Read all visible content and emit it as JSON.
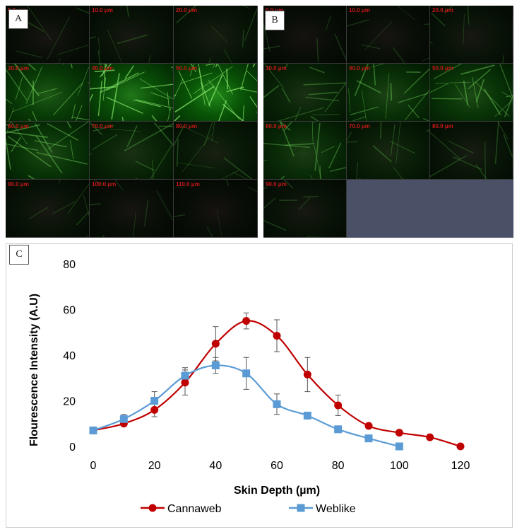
{
  "panel_a": {
    "label": "A",
    "tiles": [
      {
        "depth": "0.0 μm",
        "intensity": 0.1
      },
      {
        "depth": "10.0 μm",
        "intensity": 0.14
      },
      {
        "depth": "20.0 μm",
        "intensity": 0.18
      },
      {
        "depth": "30.0 μm",
        "intensity": 0.65
      },
      {
        "depth": "40.0 μm",
        "intensity": 0.85
      },
      {
        "depth": "50.0 μm",
        "intensity": 0.95
      },
      {
        "depth": "60.0 μm",
        "intensity": 0.55
      },
      {
        "depth": "70.0 μm",
        "intensity": 0.35
      },
      {
        "depth": "80.0 μm",
        "intensity": 0.22
      },
      {
        "depth": "90.0 μm",
        "intensity": 0.14
      },
      {
        "depth": "100.0 μm",
        "intensity": 0.1
      },
      {
        "depth": "110.0 μm",
        "intensity": 0.08
      }
    ]
  },
  "panel_b": {
    "label": "B",
    "tiles": [
      {
        "depth": "0.0 μm",
        "intensity": 0.08
      },
      {
        "depth": "10.0 μm",
        "intensity": 0.1
      },
      {
        "depth": "20.0 μm",
        "intensity": 0.14
      },
      {
        "depth": "30.0 μm",
        "intensity": 0.35
      },
      {
        "depth": "40.0 μm",
        "intensity": 0.5
      },
      {
        "depth": "50.0 μm",
        "intensity": 0.55
      },
      {
        "depth": "60.0 μm",
        "intensity": 0.45
      },
      {
        "depth": "70.0 μm",
        "intensity": 0.28
      },
      {
        "depth": "80.0 μm",
        "intensity": 0.18
      },
      {
        "depth": "90.0 μm",
        "intensity": 0.14
      }
    ]
  },
  "panel_c": {
    "label": "C"
  },
  "chart_data": {
    "type": "line",
    "title": "",
    "xlabel": "Skin Depth (µm)",
    "ylabel": "Flourescence Intensity (A.U)",
    "xlim": [
      0,
      120
    ],
    "ylim": [
      0,
      80
    ],
    "xticks": [
      0,
      20,
      40,
      60,
      80,
      100,
      120
    ],
    "yticks": [
      0,
      20,
      40,
      60,
      80
    ],
    "grid": false,
    "legend_position": "bottom",
    "series": [
      {
        "name": "Cannaweb",
        "color": "#c00000",
        "marker": "circle",
        "x": [
          0,
          10,
          20,
          30,
          40,
          50,
          60,
          70,
          80,
          90,
          100,
          110,
          120
        ],
        "y": [
          7,
          10,
          16,
          28,
          45,
          55,
          48.5,
          31.5,
          18,
          9,
          6,
          4,
          0
        ],
        "err": [
          0,
          0,
          3,
          5.5,
          7.5,
          3.5,
          7,
          7.5,
          4.5,
          0,
          0,
          0,
          0
        ]
      },
      {
        "name": "Weblike",
        "color": "#5b9bd5",
        "marker": "square",
        "x": [
          0,
          10,
          20,
          30,
          40,
          50,
          60,
          70,
          80,
          90,
          100
        ],
        "y": [
          7,
          12,
          20,
          31,
          35.5,
          32,
          18.5,
          13.5,
          7.5,
          3.5,
          0
        ],
        "err": [
          0,
          2,
          4,
          3.5,
          3.5,
          7,
          4.5,
          0,
          0,
          0,
          0
        ]
      }
    ]
  }
}
